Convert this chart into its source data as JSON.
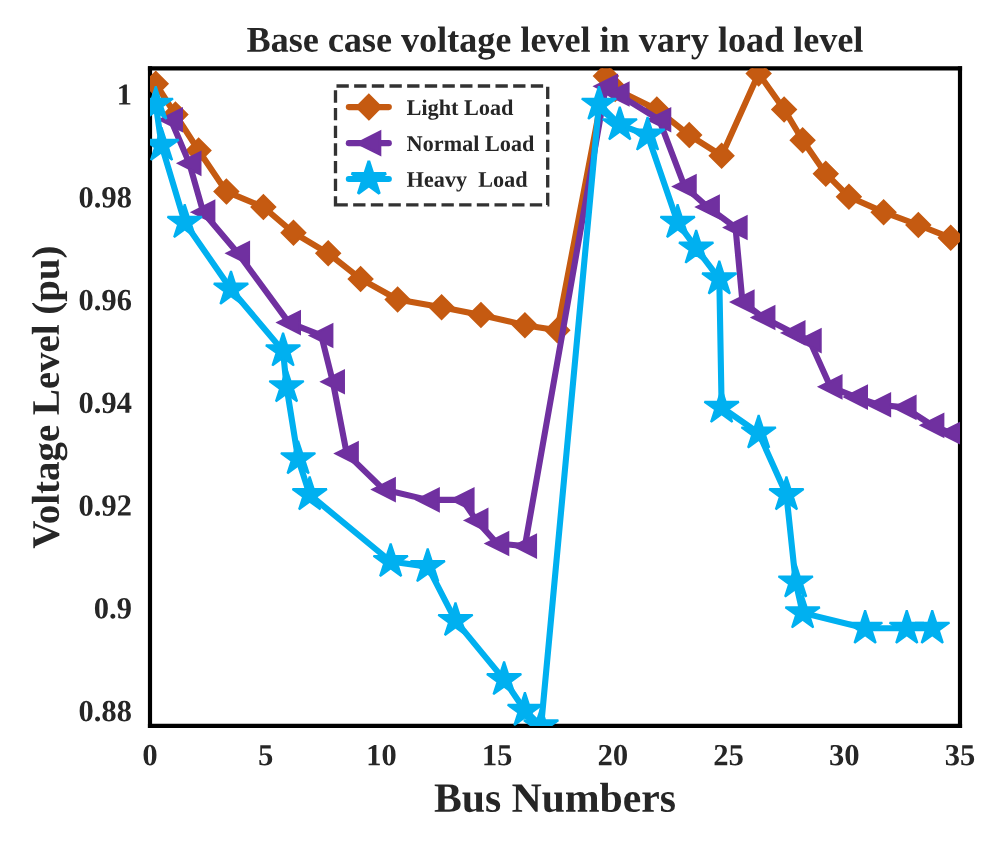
{
  "chart_data": {
    "type": "line",
    "title": "Base case voltage level in vary load level",
    "xlabel": "Bus Numbers",
    "ylabel": "Voltage Level (pu)",
    "xlim": [
      0,
      35
    ],
    "xticks": [
      0,
      5,
      10,
      15,
      20,
      25,
      30,
      35
    ],
    "ylim": [
      0.877,
      1.005
    ],
    "yticks": [
      0.88,
      0.9,
      0.92,
      0.94,
      0.96,
      0.98,
      1
    ],
    "grid": false,
    "legend": "top",
    "line_style": "solid",
    "series": [
      {
        "name": "Light Load",
        "color": "#c55a11",
        "marker": "diamond",
        "x": [
          0.25,
          1.1,
          2.1,
          3.3,
          4.9,
          6.2,
          7.7,
          9.1,
          10.7,
          12.6,
          14.3,
          16.2,
          17.6,
          19.7,
          20.1,
          21.9,
          23.3,
          24.7,
          26.3,
          27.4,
          28.2,
          29.2,
          30.2,
          31.7,
          33.2,
          34.6
        ],
        "values": [
          1.002,
          0.996,
          0.989,
          0.981,
          0.978,
          0.973,
          0.969,
          0.964,
          0.96,
          0.9585,
          0.957,
          0.955,
          0.954,
          1.0035,
          1.001,
          0.997,
          0.992,
          0.988,
          1.004,
          0.997,
          0.991,
          0.9845,
          0.98,
          0.977,
          0.9745,
          0.972
        ]
      },
      {
        "name": "Normal Load",
        "color": "#7030a0",
        "marker": "triangle",
        "x": [
          0.9,
          1.7,
          2.3,
          3.8,
          6,
          7.4,
          7.9,
          8.5,
          10.1,
          12,
          13.5,
          14.1,
          15,
          16.2,
          19.7,
          20.2,
          22,
          23.1,
          24.1,
          25.3,
          25.6,
          26.5,
          27.8,
          28.5,
          29.4,
          30.5,
          31.5,
          32.6,
          33.8,
          34.6
        ],
        "values": [
          0.995,
          0.9865,
          0.977,
          0.969,
          0.9555,
          0.953,
          0.944,
          0.93,
          0.923,
          0.921,
          0.921,
          0.917,
          0.9125,
          0.912,
          1.0015,
          1,
          0.995,
          0.982,
          0.978,
          0.974,
          0.9595,
          0.9565,
          0.9535,
          0.952,
          0.943,
          0.941,
          0.9395,
          0.939,
          0.9355,
          0.934
        ]
      },
      {
        "name": "Heavy  Load",
        "color": "#00b0f0",
        "marker": "star",
        "x": [
          0.25,
          0.5,
          1.5,
          3.5,
          5.75,
          5.9,
          6.4,
          6.9,
          10.4,
          12,
          13.2,
          15.3,
          16.2,
          16.9,
          19.4,
          20.3,
          21.5,
          22.8,
          23.6,
          24.6,
          24.7,
          26.3,
          27.5,
          27.9,
          28.2,
          30.9,
          32.7,
          33.8
        ],
        "values": [
          0.998,
          0.99,
          0.975,
          0.962,
          0.95,
          0.943,
          0.929,
          0.922,
          0.909,
          0.908,
          0.8975,
          0.886,
          0.88,
          0.877,
          0.998,
          0.994,
          0.992,
          0.975,
          0.97,
          0.964,
          0.939,
          0.934,
          0.922,
          0.905,
          0.899,
          0.896,
          0.896,
          0.896
        ]
      }
    ]
  }
}
